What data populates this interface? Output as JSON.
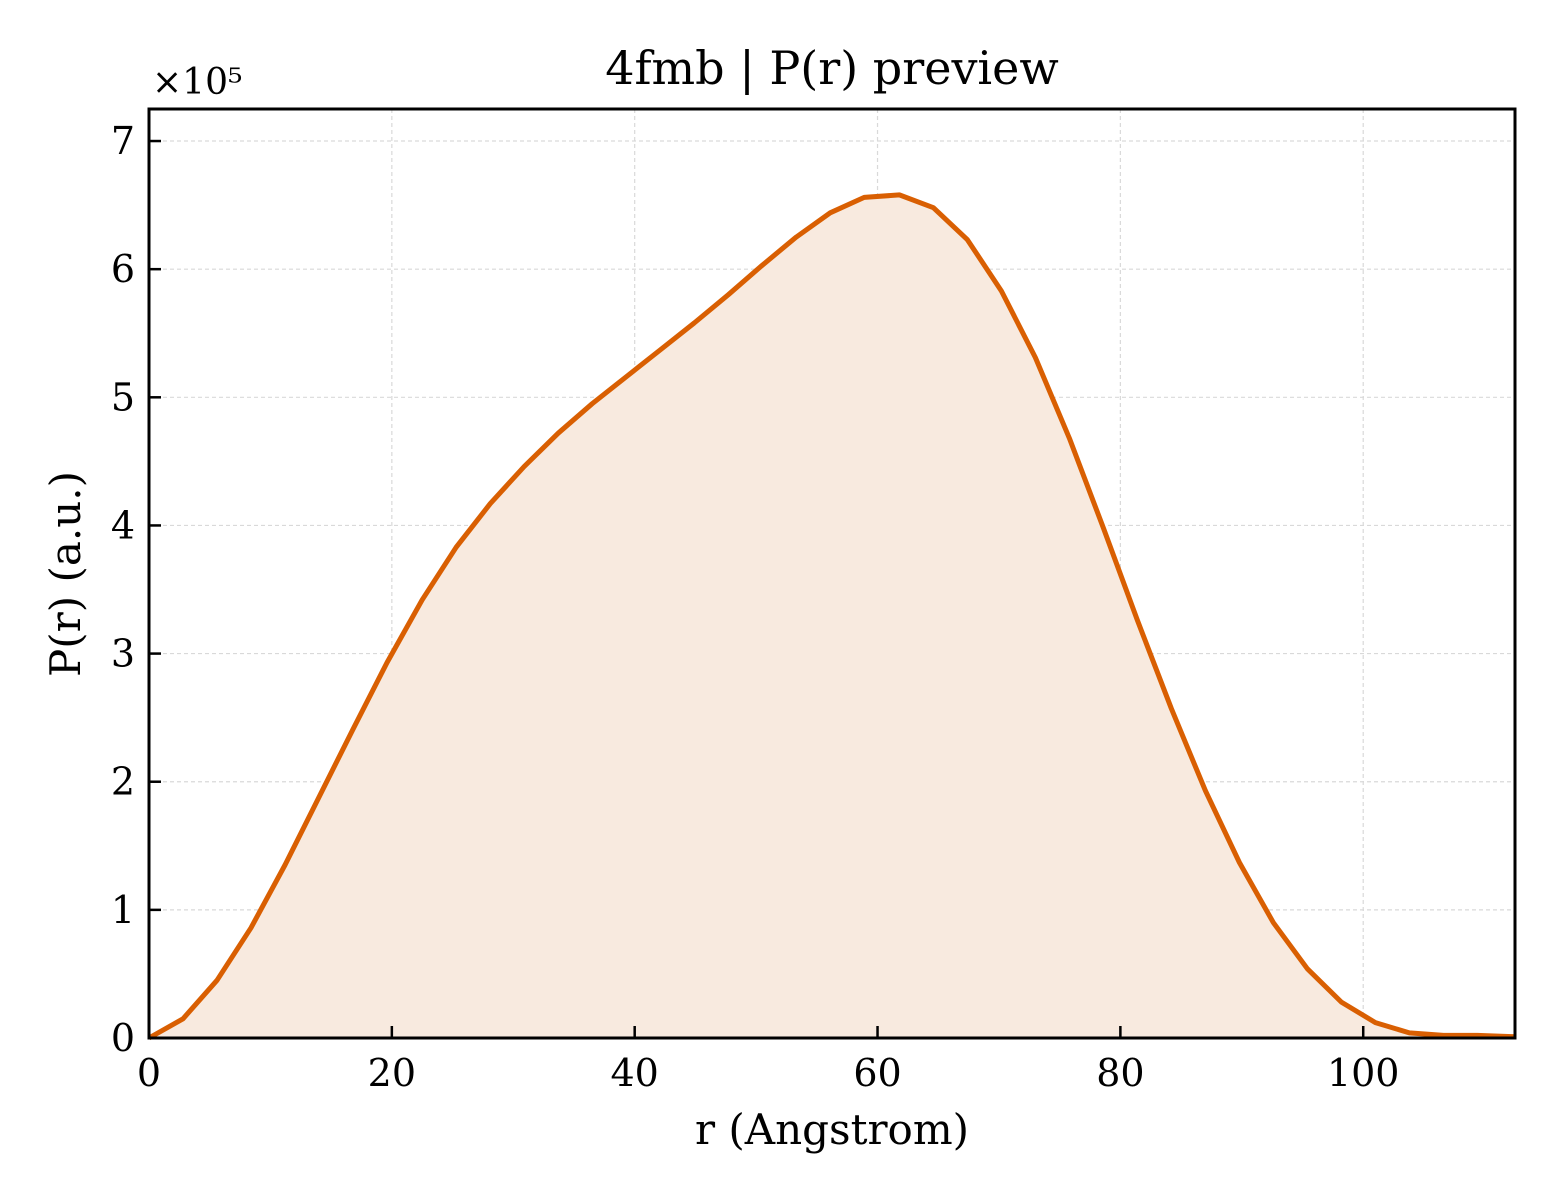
{
  "chart_data": {
    "type": "area",
    "title": "4fmb | P(r) preview",
    "xlabel": "r (Angstrom)",
    "ylabel": "P(r) (a.u.)",
    "y_multiplier_label": "×10⁵",
    "xlim": [
      0,
      112.5
    ],
    "ylim": [
      0,
      7.25
    ],
    "x_ticks": [
      0,
      20,
      40,
      60,
      80,
      100
    ],
    "x_tick_labels": [
      "0",
      "20",
      "40",
      "60",
      "80",
      "100"
    ],
    "y_ticks": [
      0,
      1,
      2,
      3,
      4,
      5,
      6,
      7
    ],
    "y_tick_labels": [
      "0",
      "1",
      "2",
      "3",
      "4",
      "5",
      "6",
      "7"
    ],
    "grid": true,
    "colors": {
      "line": "#d95f02",
      "fill": "#f8eadf",
      "grid": "#d9d9d9"
    },
    "series": [
      {
        "x": [
          0,
          2.8,
          5.6,
          8.4,
          11.2,
          14.0,
          16.8,
          19.6,
          22.5,
          25.3,
          28.1,
          30.9,
          33.7,
          36.5,
          39.3,
          42.1,
          44.9,
          47.7,
          50.5,
          53.3,
          56.1,
          58.9,
          61.8,
          64.6,
          67.4,
          70.2,
          73.0,
          75.8,
          78.6,
          81.4,
          84.2,
          87.0,
          89.8,
          92.6,
          95.4,
          98.2,
          101.0,
          103.8,
          106.6,
          109.4,
          112.5
        ],
        "y": [
          0.0,
          0.15,
          0.45,
          0.86,
          1.35,
          1.88,
          2.41,
          2.93,
          3.42,
          3.83,
          4.17,
          4.46,
          4.72,
          4.95,
          5.16,
          5.37,
          5.58,
          5.8,
          6.03,
          6.25,
          6.44,
          6.56,
          6.58,
          6.48,
          6.23,
          5.83,
          5.31,
          4.68,
          3.98,
          3.26,
          2.57,
          1.93,
          1.37,
          0.9,
          0.54,
          0.28,
          0.12,
          0.04,
          0.02,
          0.02,
          0.01
        ]
      }
    ]
  }
}
